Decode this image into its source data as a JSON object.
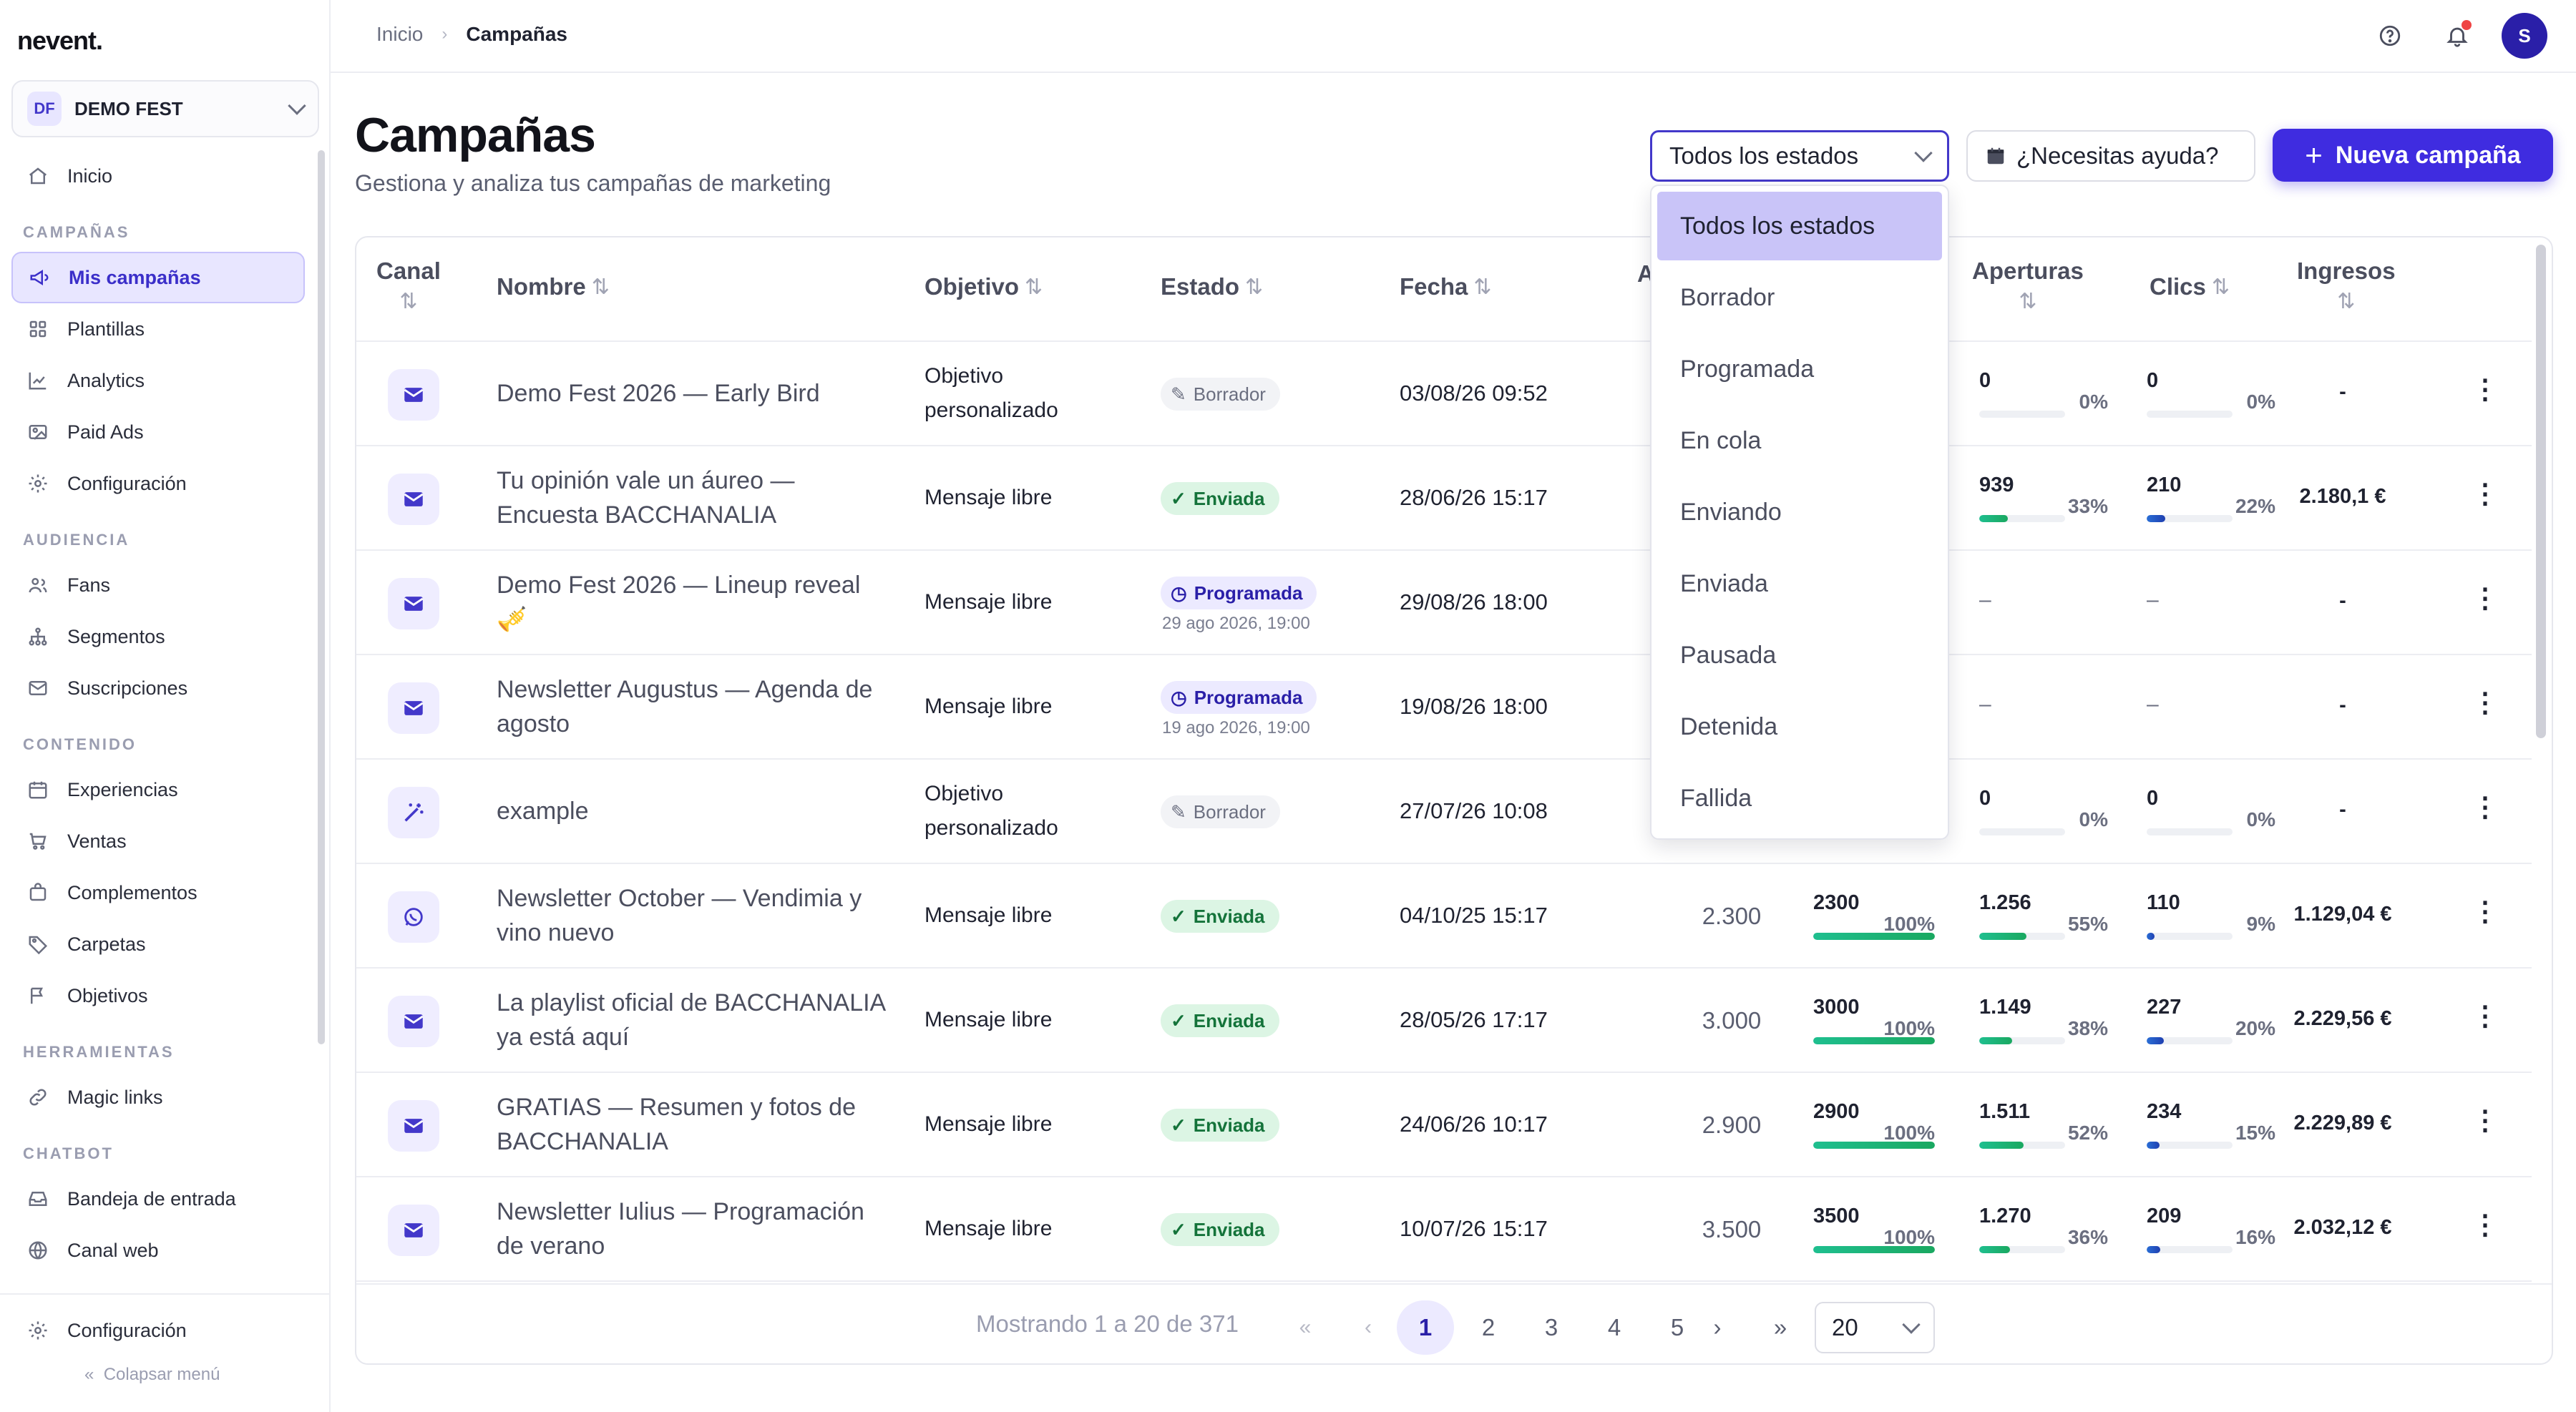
{
  "app": {
    "logo": "nevent."
  },
  "org": {
    "initials": "DF",
    "name": "DEMO FEST"
  },
  "sidebar": {
    "top": [
      {
        "label": "Inicio",
        "icon": "home-icon"
      }
    ],
    "sections": [
      {
        "title": "CAMPAÑAS",
        "items": [
          {
            "label": "Mis campañas",
            "icon": "megaphone-icon",
            "active": true
          },
          {
            "label": "Plantillas",
            "icon": "grid-icon"
          },
          {
            "label": "Analytics",
            "icon": "trend-icon"
          },
          {
            "label": "Paid Ads",
            "icon": "image-icon"
          },
          {
            "label": "Configuración",
            "icon": "gear-icon"
          }
        ]
      },
      {
        "title": "AUDIENCIA",
        "items": [
          {
            "label": "Fans",
            "icon": "users-icon"
          },
          {
            "label": "Segmentos",
            "icon": "hierarchy-icon"
          },
          {
            "label": "Suscripciones",
            "icon": "mail-icon"
          }
        ]
      },
      {
        "title": "CONTENIDO",
        "items": [
          {
            "label": "Experiencias",
            "icon": "calendar-icon"
          },
          {
            "label": "Ventas",
            "icon": "cart-icon"
          },
          {
            "label": "Complementos",
            "icon": "bag-icon"
          },
          {
            "label": "Carpetas",
            "icon": "tag-icon"
          },
          {
            "label": "Objetivos",
            "icon": "flag-icon"
          }
        ]
      },
      {
        "title": "HERRAMIENTAS",
        "items": [
          {
            "label": "Magic links",
            "icon": "link-icon"
          }
        ]
      },
      {
        "title": "CHATBOT",
        "items": [
          {
            "label": "Bandeja de entrada",
            "icon": "inbox-icon"
          },
          {
            "label": "Canal web",
            "icon": "globe-icon"
          }
        ]
      }
    ],
    "footer": {
      "settings": "Configuración",
      "collapse": "Colapsar menú"
    }
  },
  "topbar": {
    "breadcrumb_home": "Inicio",
    "breadcrumb_current": "Campañas",
    "avatar": "S"
  },
  "header": {
    "title": "Campañas",
    "subtitle": "Gestiona y analiza tus campañas de marketing"
  },
  "filters": {
    "status_selected": "Todos los estados",
    "help_label": "¿Necesitas ayuda?",
    "new_label": "Nueva campaña"
  },
  "status_options": [
    "Todos los estados",
    "Borrador",
    "Programada",
    "En cola",
    "Enviando",
    "Enviada",
    "Pausada",
    "Detenida",
    "Fallida"
  ],
  "table": {
    "headers": {
      "channel": "Canal",
      "name": "Nombre",
      "objective": "Objetivo",
      "state": "Estado",
      "date": "Fecha",
      "audience": "A",
      "opens": "Aperturas",
      "clicks": "Clics",
      "revenue": "Ingresos"
    },
    "rows": [
      {
        "channel": "email",
        "name": "Demo Fest 2026 — Early Bird",
        "objective": "Objetivo personalizado",
        "state": "Borrador",
        "state_type": "borrador",
        "scheduled": "",
        "date": "03/08/26 09:52",
        "audience": "",
        "sent": null,
        "opens": {
          "value": "0",
          "pct": "0%",
          "fill": 0
        },
        "clicks": {
          "value": "0",
          "pct": "0%",
          "fill": 0
        },
        "revenue": "-"
      },
      {
        "channel": "email",
        "name": "Tu opinión vale un áureo — Encuesta BACCHANALIA",
        "objective": "Mensaje libre",
        "state": "Enviada",
        "state_type": "enviada",
        "scheduled": "",
        "date": "28/06/26 15:17",
        "audience": "",
        "sent": null,
        "opens": {
          "value": "939",
          "pct": "33%",
          "fill": 0.33
        },
        "clicks": {
          "value": "210",
          "pct": "22%",
          "fill": 0.22
        },
        "revenue": "2.180,1 €"
      },
      {
        "channel": "email",
        "name": "Demo Fest 2026 — Lineup reveal 🎺",
        "objective": "Mensaje libre",
        "state": "Programada",
        "state_type": "programada",
        "scheduled": "29 ago 2026, 19:00",
        "date": "29/08/26 18:00",
        "audience": "",
        "sent": null,
        "opens": null,
        "clicks": null,
        "revenue": "-"
      },
      {
        "channel": "email",
        "name": "Newsletter Augustus — Agenda de agosto",
        "objective": "Mensaje libre",
        "state": "Programada",
        "state_type": "programada",
        "scheduled": "19 ago 2026, 19:00",
        "date": "19/08/26 18:00",
        "audience": "",
        "sent": null,
        "opens": null,
        "clicks": null,
        "revenue": "-"
      },
      {
        "channel": "magic",
        "name": "example",
        "objective": "Objetivo personalizado",
        "state": "Borrador",
        "state_type": "borrador",
        "scheduled": "",
        "date": "27/07/26 10:08",
        "audience": "",
        "sent": null,
        "opens": {
          "value": "0",
          "pct": "0%",
          "fill": 0
        },
        "clicks": {
          "value": "0",
          "pct": "0%",
          "fill": 0
        },
        "revenue": "-"
      },
      {
        "channel": "whatsapp",
        "name": "Newsletter October — Vendimia y vino nuevo",
        "objective": "Mensaje libre",
        "state": "Enviada",
        "state_type": "enviada",
        "scheduled": "",
        "date": "04/10/25 15:17",
        "audience": "2.300",
        "sent": {
          "value": "2300",
          "pct": "100%",
          "fill": 1
        },
        "opens": {
          "value": "1.256",
          "pct": "55%",
          "fill": 0.55
        },
        "clicks": {
          "value": "110",
          "pct": "9%",
          "fill": 0.09
        },
        "revenue": "1.129,04 €"
      },
      {
        "channel": "email",
        "name": "La playlist oficial de BACCHANALIA ya está aquí",
        "objective": "Mensaje libre",
        "state": "Enviada",
        "state_type": "enviada",
        "scheduled": "",
        "date": "28/05/26 17:17",
        "audience": "3.000",
        "sent": {
          "value": "3000",
          "pct": "100%",
          "fill": 1
        },
        "opens": {
          "value": "1.149",
          "pct": "38%",
          "fill": 0.38
        },
        "clicks": {
          "value": "227",
          "pct": "20%",
          "fill": 0.2
        },
        "revenue": "2.229,56 €"
      },
      {
        "channel": "email",
        "name": "GRATIAS — Resumen y fotos de BACCHANALIA",
        "objective": "Mensaje libre",
        "state": "Enviada",
        "state_type": "enviada",
        "scheduled": "",
        "date": "24/06/26 10:17",
        "audience": "2.900",
        "sent": {
          "value": "2900",
          "pct": "100%",
          "fill": 1
        },
        "opens": {
          "value": "1.511",
          "pct": "52%",
          "fill": 0.52
        },
        "clicks": {
          "value": "234",
          "pct": "15%",
          "fill": 0.15
        },
        "revenue": "2.229,89 €"
      },
      {
        "channel": "email",
        "name": "Newsletter Iulius — Programación de verano",
        "objective": "Mensaje libre",
        "state": "Enviada",
        "state_type": "enviada",
        "scheduled": "",
        "date": "10/07/26 15:17",
        "audience": "3.500",
        "sent": {
          "value": "3500",
          "pct": "100%",
          "fill": 1
        },
        "opens": {
          "value": "1.270",
          "pct": "36%",
          "fill": 0.36
        },
        "clicks": {
          "value": "209",
          "pct": "16%",
          "fill": 0.16
        },
        "revenue": "2.032,12 €"
      }
    ]
  },
  "pagination": {
    "info": "Mostrando 1 a 20 de 371",
    "pages": [
      "1",
      "2",
      "3",
      "4",
      "5"
    ],
    "current": "1",
    "page_size": "20"
  },
  "colors": {
    "accent": "#3f2ce0",
    "green_grad": "#1fbf8f",
    "blue_grad": "#2a6fd6"
  }
}
